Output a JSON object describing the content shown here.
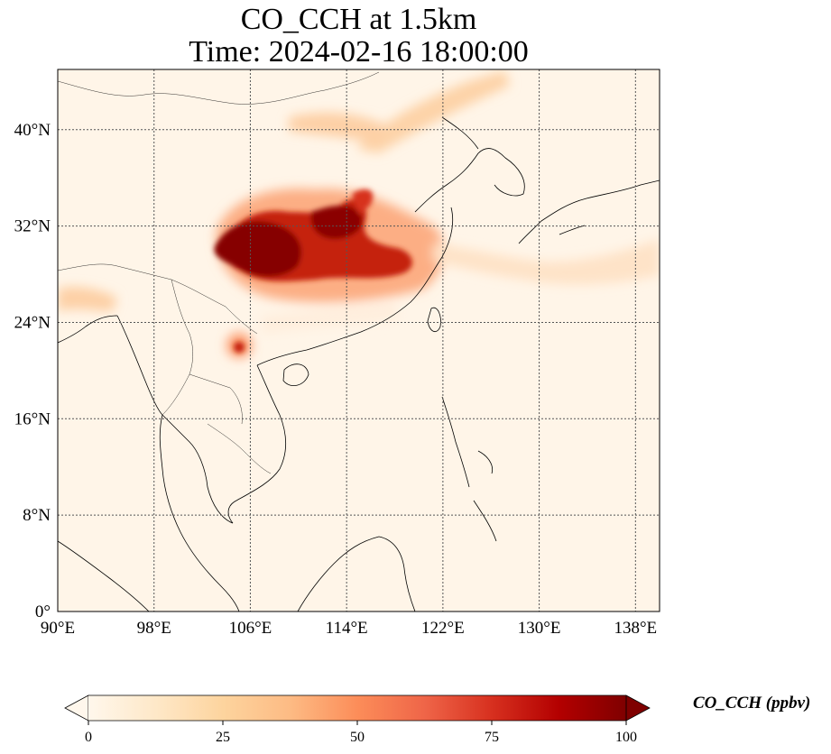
{
  "title": {
    "line1": "CO_CCH at 1.5km",
    "line2": "Time: 2024-02-16 18:00:00"
  },
  "map": {
    "variable": "CO_CCH",
    "level": "1.5km",
    "time": "2024-02-16 18:00:00",
    "extent": {
      "lon": [
        90,
        140
      ],
      "lat": [
        0,
        45
      ]
    },
    "lon_ticks": [
      "90°E",
      "98°E",
      "106°E",
      "114°E",
      "122°E",
      "130°E",
      "138°E"
    ],
    "lat_ticks": [
      "0°",
      "8°N",
      "16°N",
      "24°N",
      "32°N",
      "40°N"
    ],
    "gridlines": true,
    "colormap": "OrRd",
    "background_color": "#fff5e8",
    "high_color": "#7f0000"
  },
  "colorbar": {
    "label": "CO_CCH (ppbv)",
    "ticks": [
      "0",
      "25",
      "50",
      "75",
      "100"
    ],
    "min": 0,
    "max": 100,
    "extend": "both"
  }
}
